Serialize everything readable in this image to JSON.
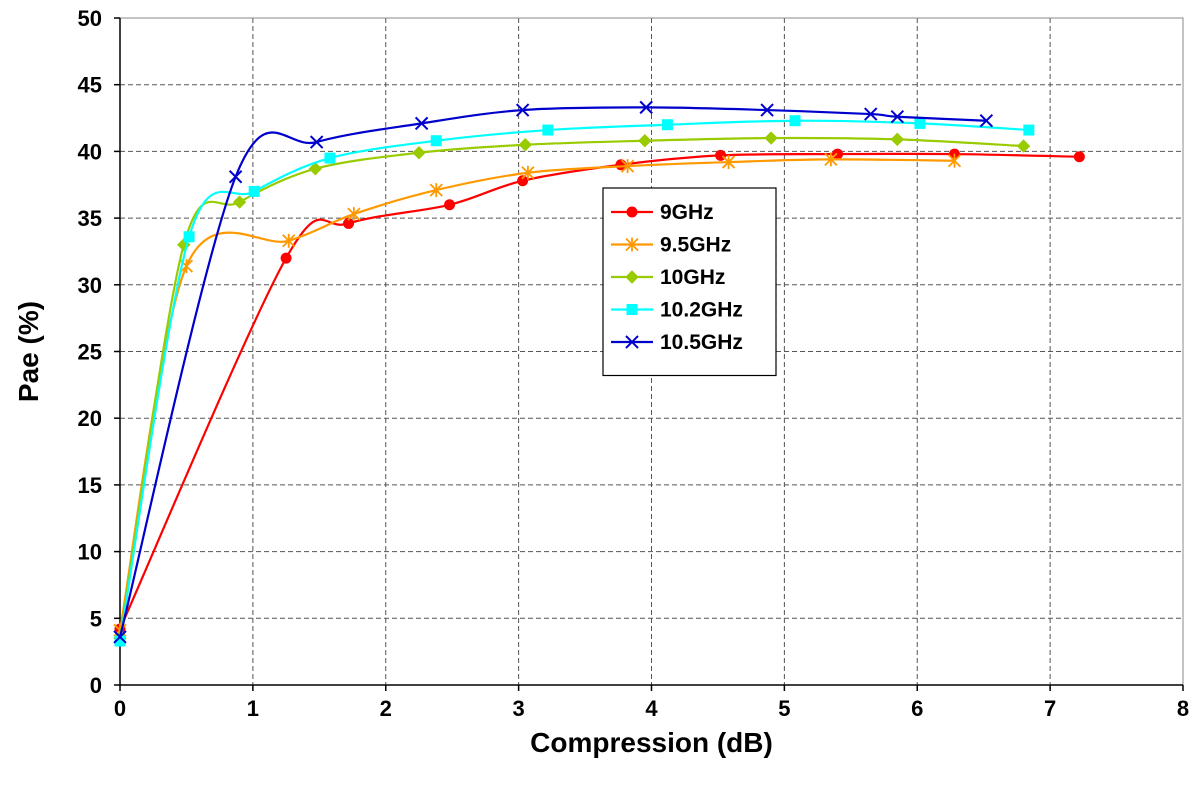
{
  "chart_data": {
    "type": "line",
    "title": "",
    "xlabel": "Compression (dB)",
    "ylabel": "Pae (%)",
    "xlim": [
      0,
      8
    ],
    "ylim": [
      0,
      50
    ],
    "xticks": [
      0,
      1,
      2,
      3,
      4,
      5,
      6,
      7,
      8
    ],
    "yticks": [
      0,
      5,
      10,
      15,
      20,
      25,
      30,
      35,
      40,
      45,
      50
    ],
    "grid": true,
    "legend_position": "center-right",
    "series": [
      {
        "name": "9GHz",
        "color": "#ff0000",
        "marker": "circle",
        "points": [
          [
            0,
            4.2
          ],
          [
            1.25,
            32
          ],
          [
            1.72,
            34.6
          ],
          [
            2.48,
            36
          ],
          [
            3.03,
            37.8
          ],
          [
            3.77,
            39
          ],
          [
            4.52,
            39.7
          ],
          [
            5.4,
            39.8
          ],
          [
            6.28,
            39.8
          ],
          [
            7.22,
            39.6
          ]
        ]
      },
      {
        "name": "9.5GHz",
        "color": "#ff9900",
        "marker": "asterisk",
        "points": [
          [
            0,
            4.1
          ],
          [
            0.5,
            31.4
          ],
          [
            1.27,
            33.3
          ],
          [
            1.76,
            35.3
          ],
          [
            2.38,
            37.1
          ],
          [
            3.07,
            38.4
          ],
          [
            3.82,
            38.9
          ],
          [
            4.58,
            39.2
          ],
          [
            5.35,
            39.4
          ],
          [
            6.28,
            39.3
          ]
        ]
      },
      {
        "name": "10GHz",
        "color": "#99cc00",
        "marker": "diamond",
        "points": [
          [
            0,
            3.5
          ],
          [
            0.48,
            33
          ],
          [
            0.9,
            36.2
          ],
          [
            1.47,
            38.7
          ],
          [
            2.25,
            39.9
          ],
          [
            3.05,
            40.5
          ],
          [
            3.95,
            40.8
          ],
          [
            4.9,
            41
          ],
          [
            5.85,
            40.9
          ],
          [
            6.8,
            40.4
          ]
        ]
      },
      {
        "name": "10.2GHz",
        "color": "#00ffff",
        "marker": "square",
        "points": [
          [
            0,
            3.3
          ],
          [
            0.52,
            33.6
          ],
          [
            1.01,
            37
          ],
          [
            1.58,
            39.5
          ],
          [
            2.38,
            40.8
          ],
          [
            3.22,
            41.6
          ],
          [
            4.12,
            42
          ],
          [
            5.08,
            42.3
          ],
          [
            6.02,
            42.1
          ],
          [
            6.84,
            41.6
          ]
        ]
      },
      {
        "name": "10.5GHz",
        "color": "#0000cc",
        "marker": "cross",
        "points": [
          [
            0,
            3.6
          ],
          [
            0.87,
            38.1
          ],
          [
            1.48,
            40.7
          ],
          [
            2.27,
            42.1
          ],
          [
            3.03,
            43.1
          ],
          [
            3.96,
            43.3
          ],
          [
            4.87,
            43.1
          ],
          [
            5.65,
            42.8
          ],
          [
            5.85,
            42.6
          ],
          [
            6.52,
            42.3
          ]
        ]
      }
    ]
  }
}
